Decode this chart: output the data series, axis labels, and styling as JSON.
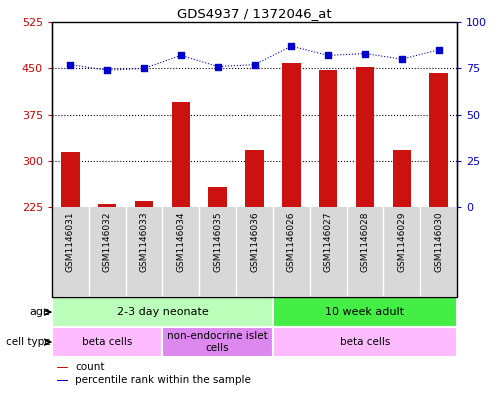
{
  "title": "GDS4937 / 1372046_at",
  "samples": [
    "GSM1146031",
    "GSM1146032",
    "GSM1146033",
    "GSM1146034",
    "GSM1146035",
    "GSM1146036",
    "GSM1146026",
    "GSM1146027",
    "GSM1146028",
    "GSM1146029",
    "GSM1146030"
  ],
  "counts": [
    315,
    230,
    235,
    395,
    258,
    318,
    458,
    448,
    452,
    318,
    442
  ],
  "percentiles": [
    77,
    74,
    75,
    82,
    76,
    77,
    87,
    82,
    83,
    80,
    85
  ],
  "ylim_left": [
    225,
    525
  ],
  "ylim_right": [
    0,
    100
  ],
  "yticks_left": [
    225,
    300,
    375,
    450,
    525
  ],
  "yticks_right": [
    0,
    25,
    50,
    75,
    100
  ],
  "bar_color": "#cc1111",
  "scatter_color": "#0000cc",
  "grid_color": "#000000",
  "bg_color": "#ffffff",
  "plot_bg": "#ffffff",
  "tick_bg": "#d8d8d8",
  "age_groups": [
    {
      "label": "2-3 day neonate",
      "start": 0,
      "end": 6,
      "color": "#bbffbb"
    },
    {
      "label": "10 week adult",
      "start": 6,
      "end": 11,
      "color": "#44ee44"
    }
  ],
  "cell_groups": [
    {
      "label": "beta cells",
      "start": 0,
      "end": 3,
      "color": "#ffbbff"
    },
    {
      "label": "non-endocrine islet\ncells",
      "start": 3,
      "end": 6,
      "color": "#dd88ee"
    },
    {
      "label": "beta cells",
      "start": 6,
      "end": 11,
      "color": "#ffbbff"
    }
  ],
  "legend_items": [
    {
      "color": "#cc1111",
      "label": "count"
    },
    {
      "color": "#0000cc",
      "label": "percentile rank within the sample"
    }
  ],
  "left_axis_color": "#cc0000",
  "right_axis_color": "#0000cc"
}
